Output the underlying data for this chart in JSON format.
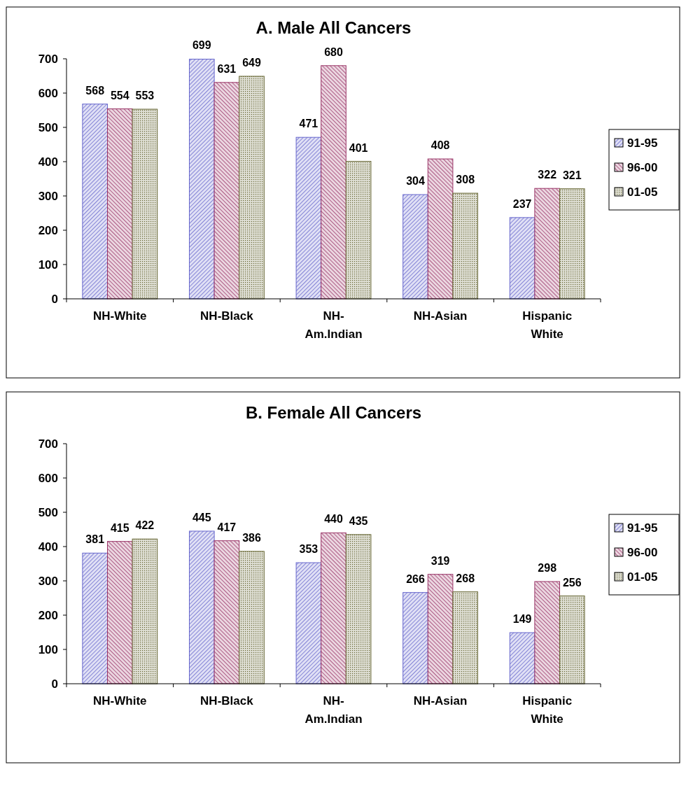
{
  "chart_data": [
    {
      "type": "bar",
      "title": "A. Male All Cancers",
      "categories": [
        "NH-White",
        "NH-Black",
        "NH-Am.Indian",
        "NH-Asian",
        "Hispanic White"
      ],
      "series": [
        {
          "name": "91-95",
          "color": "#6666cc",
          "values": [
            568,
            699,
            471,
            304,
            237
          ]
        },
        {
          "name": "96-00",
          "color": "#993366",
          "values": [
            554,
            631,
            680,
            408,
            322
          ]
        },
        {
          "name": "01-05",
          "color": "#666633",
          "values": [
            553,
            649,
            401,
            308,
            321
          ]
        }
      ],
      "ylim": [
        0,
        700
      ],
      "yticks": [
        0,
        100,
        200,
        300,
        400,
        500,
        600,
        700
      ],
      "data_labels": true,
      "legend": "right",
      "grid": false
    },
    {
      "type": "bar",
      "title": "B. Female All Cancers",
      "categories": [
        "NH-White",
        "NH-Black",
        "NH-Am.Indian",
        "NH-Asian",
        "Hispanic White"
      ],
      "series": [
        {
          "name": "91-95",
          "color": "#6666cc",
          "values": [
            381,
            445,
            353,
            266,
            149
          ]
        },
        {
          "name": "96-00",
          "color": "#993366",
          "values": [
            415,
            417,
            440,
            319,
            298
          ]
        },
        {
          "name": "01-05",
          "color": "#666633",
          "values": [
            422,
            386,
            435,
            268,
            256
          ]
        }
      ],
      "ylim": [
        0,
        700
      ],
      "yticks": [
        0,
        100,
        200,
        300,
        400,
        500,
        600,
        700
      ],
      "data_labels": true,
      "legend": "right",
      "grid": false
    }
  ]
}
